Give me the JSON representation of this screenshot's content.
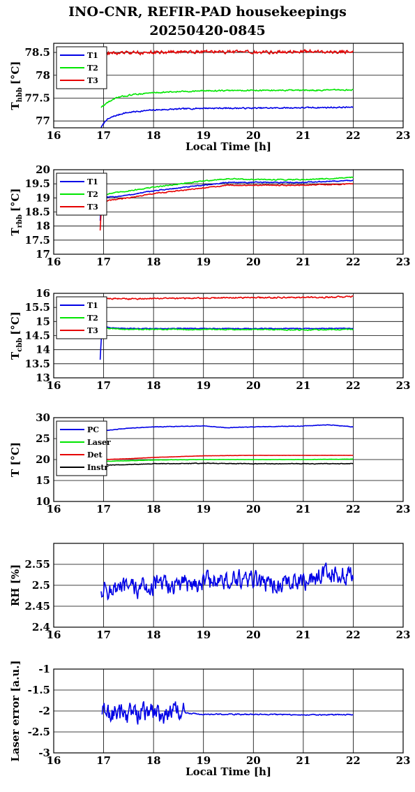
{
  "title": "INO-CNR, REFIR-PAD housekeepings",
  "subtitle": "20250420-0845",
  "chart_data": [
    {
      "type": "line",
      "ylabel_main": "T",
      "ylabel_sub": "hbb",
      "ylabel_unit": "[°C]",
      "xlabel": "Local Time [h]",
      "xlim": [
        16,
        23
      ],
      "xticks": [
        16,
        17,
        18,
        19,
        20,
        21,
        22,
        23
      ],
      "ylim": [
        76.85,
        78.7
      ],
      "yticks": [
        77,
        77.5,
        78,
        78.5
      ],
      "ytick_labels": [
        "77",
        "77.5",
        "78",
        "78.5"
      ],
      "grid": true,
      "legend_position": "top-left",
      "series": [
        {
          "name": "T1",
          "color": "#0000e6",
          "noise": 0.012,
          "x": [
            16.95,
            17.05,
            17.2,
            17.4,
            17.6,
            18.0,
            18.5,
            19.0,
            20.0,
            21.0,
            22.0
          ],
          "y": [
            76.86,
            77.02,
            77.1,
            77.17,
            77.2,
            77.24,
            77.26,
            77.28,
            77.28,
            77.29,
            77.3
          ]
        },
        {
          "name": "T2",
          "color": "#00e600",
          "noise": 0.012,
          "x": [
            16.95,
            17.1,
            17.3,
            17.6,
            18.0,
            18.5,
            19.0,
            20.0,
            21.0,
            22.0
          ],
          "y": [
            77.3,
            77.42,
            77.52,
            77.58,
            77.62,
            77.64,
            77.66,
            77.67,
            77.67,
            77.68
          ]
        },
        {
          "name": "T3",
          "color": "#e60000",
          "noise": 0.03,
          "x": [
            16.95,
            17.5,
            18.0,
            19.0,
            20.0,
            21.0,
            22.0
          ],
          "y": [
            78.48,
            78.49,
            78.5,
            78.52,
            78.5,
            78.52,
            78.51
          ]
        }
      ]
    },
    {
      "type": "line",
      "ylabel_main": "T",
      "ylabel_sub": "rbb",
      "ylabel_unit": "[°C]",
      "xlabel": "",
      "xlim": [
        16,
        23
      ],
      "xticks": [
        16,
        17,
        18,
        19,
        20,
        21,
        22,
        23
      ],
      "ylim": [
        17,
        20
      ],
      "yticks": [
        17,
        17.5,
        18,
        18.5,
        19,
        19.5,
        20
      ],
      "ytick_labels": [
        "17",
        "17.5",
        "18",
        "18.5",
        "19",
        "19.5",
        "20"
      ],
      "grid": true,
      "legend_position": "top-left",
      "series": [
        {
          "name": "T1",
          "color": "#0000e6",
          "noise": 0.015,
          "x": [
            16.93,
            16.96,
            17.0,
            17.5,
            18.0,
            19.0,
            19.5,
            20.0,
            21.0,
            22.0
          ],
          "y": [
            18.2,
            19.0,
            19.0,
            19.1,
            19.25,
            19.45,
            19.55,
            19.55,
            19.55,
            19.62
          ]
        },
        {
          "name": "T2",
          "color": "#00e600",
          "noise": 0.015,
          "x": [
            16.93,
            16.96,
            17.0,
            17.5,
            18.0,
            19.0,
            19.5,
            20.0,
            21.0,
            22.0
          ],
          "y": [
            18.4,
            19.1,
            19.12,
            19.25,
            19.38,
            19.6,
            19.68,
            19.65,
            19.65,
            19.72
          ]
        },
        {
          "name": "T3",
          "color": "#e60000",
          "noise": 0.015,
          "x": [
            16.93,
            16.96,
            17.0,
            17.5,
            18.0,
            19.0,
            19.5,
            20.0,
            21.0,
            22.0
          ],
          "y": [
            17.85,
            18.82,
            18.88,
            19.0,
            19.15,
            19.35,
            19.45,
            19.45,
            19.45,
            19.5
          ]
        }
      ]
    },
    {
      "type": "line",
      "ylabel_main": "T",
      "ylabel_sub": "cbb",
      "ylabel_unit": "[°C]",
      "xlabel": "",
      "xlim": [
        16,
        23
      ],
      "xticks": [
        16,
        17,
        18,
        19,
        20,
        21,
        22,
        23
      ],
      "ylim": [
        13,
        16
      ],
      "yticks": [
        13,
        13.5,
        14,
        14.5,
        15,
        15.5,
        16
      ],
      "ytick_labels": [
        "13",
        "13.5",
        "14",
        "14.5",
        "15",
        "15.5",
        "16"
      ],
      "grid": true,
      "legend_position": "top-left",
      "series": [
        {
          "name": "T1",
          "color": "#0000e6",
          "noise": 0.012,
          "x": [
            16.93,
            16.96,
            17.0,
            17.1,
            17.5,
            18.0,
            19.0,
            20.0,
            21.0,
            22.0
          ],
          "y": [
            13.65,
            14.6,
            14.85,
            14.78,
            14.75,
            14.75,
            14.75,
            14.75,
            14.75,
            14.75
          ]
        },
        {
          "name": "T2",
          "color": "#00e600",
          "noise": 0.015,
          "x": [
            16.97,
            17.0,
            17.1,
            17.5,
            18.0,
            19.0,
            20.0,
            21.0,
            22.0
          ],
          "y": [
            14.7,
            14.82,
            14.75,
            14.72,
            14.72,
            14.72,
            14.72,
            14.7,
            14.72
          ]
        },
        {
          "name": "T3",
          "color": "#e60000",
          "noise": 0.02,
          "x": [
            16.98,
            17.5,
            18.0,
            19.0,
            20.0,
            21.0,
            22.0
          ],
          "y": [
            15.82,
            15.8,
            15.82,
            15.83,
            15.85,
            15.85,
            15.88
          ]
        }
      ]
    },
    {
      "type": "line",
      "ylabel_main": "T [°C]",
      "ylabel_sub": "",
      "ylabel_unit": "",
      "xlabel": "",
      "xlim": [
        16,
        23
      ],
      "xticks": [
        16,
        17,
        18,
        19,
        20,
        21,
        22,
        23
      ],
      "ylim": [
        10,
        30
      ],
      "yticks": [
        10,
        15,
        20,
        25,
        30
      ],
      "ytick_labels": [
        "10",
        "15",
        "20",
        "25",
        "30"
      ],
      "grid": true,
      "legend_position": "top-left",
      "series": [
        {
          "name": "PC",
          "color": "#0000e6",
          "noise": 0.05,
          "x": [
            16.98,
            17.1,
            17.5,
            18.0,
            19.0,
            19.5,
            20.0,
            21.0,
            21.5,
            22.0
          ],
          "y": [
            26.8,
            27.0,
            27.5,
            27.8,
            28.0,
            27.6,
            27.8,
            28.0,
            28.3,
            27.8
          ]
        },
        {
          "name": "Laser",
          "color": "#00e600",
          "noise": 0.03,
          "x": [
            16.98,
            17.5,
            18.0,
            19.0,
            20.0,
            21.0,
            22.0
          ],
          "y": [
            19.6,
            19.7,
            19.9,
            20.0,
            20.0,
            20.0,
            20.1
          ]
        },
        {
          "name": "Det",
          "color": "#e60000",
          "noise": 0.02,
          "x": [
            16.98,
            17.5,
            18.0,
            19.0,
            20.0,
            21.0,
            22.0
          ],
          "y": [
            20.0,
            20.2,
            20.5,
            20.9,
            21.0,
            21.0,
            21.0
          ]
        },
        {
          "name": "Instr",
          "color": "#000000",
          "noise": 0.06,
          "x": [
            16.98,
            17.5,
            18.0,
            19.0,
            20.0,
            21.0,
            22.0
          ],
          "y": [
            18.7,
            18.8,
            19.0,
            19.1,
            19.0,
            19.0,
            19.0
          ]
        }
      ]
    },
    {
      "type": "line",
      "ylabel_main": "RH [%]",
      "ylabel_sub": "",
      "ylabel_unit": "",
      "xlabel": "",
      "xlim": [
        16,
        23
      ],
      "xticks": [
        16,
        17,
        18,
        19,
        20,
        21,
        22,
        23
      ],
      "ylim": [
        2.4,
        2.6
      ],
      "yticks": [
        2.4,
        2.45,
        2.5,
        2.55
      ],
      "ytick_labels": [
        "2.4",
        "2.45",
        "2.5",
        "2.55"
      ],
      "grid": true,
      "legend_position": "none",
      "series": [
        {
          "name": "",
          "color": "#0000e6",
          "noise": 0.02,
          "x": [
            16.95,
            17.5,
            18.0,
            18.5,
            19.0,
            19.5,
            20.0,
            20.5,
            21.0,
            21.5,
            22.0
          ],
          "y": [
            2.49,
            2.49,
            2.5,
            2.5,
            2.51,
            2.51,
            2.51,
            2.5,
            2.51,
            2.53,
            2.52
          ]
        }
      ]
    },
    {
      "type": "line",
      "ylabel_main": "Laser error [a.u.]",
      "ylabel_sub": "",
      "ylabel_unit": "",
      "xlabel": "Local Time [h]",
      "xlim": [
        16,
        23
      ],
      "xticks": [
        16,
        17,
        18,
        19,
        20,
        21,
        22,
        23
      ],
      "ylim": [
        -3,
        -1
      ],
      "yticks": [
        -3,
        -2.5,
        -2,
        -1.5,
        -1
      ],
      "ytick_labels": [
        "-3",
        "-2.5",
        "-2",
        "-1.5",
        "-1"
      ],
      "grid": true,
      "legend_position": "none",
      "series": [
        {
          "name": "",
          "color": "#0000e6",
          "noise": 0.22,
          "noise_until": 18.6,
          "x": [
            16.97,
            17.5,
            18.0,
            18.6,
            19.0,
            20.0,
            21.0,
            22.0
          ],
          "y": [
            -2.05,
            -2.05,
            -2.05,
            -2.05,
            -2.08,
            -2.08,
            -2.09,
            -2.09
          ]
        }
      ]
    }
  ]
}
